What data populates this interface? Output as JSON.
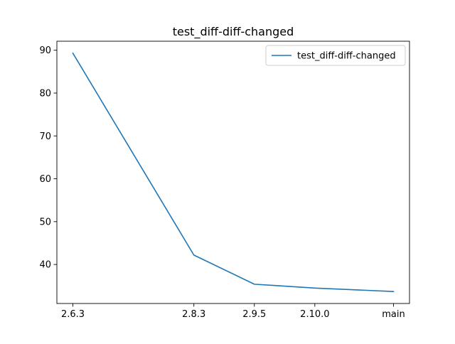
{
  "chart_data": {
    "type": "line",
    "title": "test_diff-diff-changed",
    "xlabel": "",
    "ylabel": "",
    "categories": [
      "2.6.3",
      "2.8.3",
      "2.9.5",
      "2.10.0",
      "main"
    ],
    "x": [
      2.6,
      2.8,
      2.9,
      3.0,
      3.13
    ],
    "series": [
      {
        "name": "test_diff-diff-changed",
        "color": "#1f77b4",
        "values": [
          89.3,
          42.2,
          35.4,
          34.5,
          33.7
        ]
      }
    ],
    "ylim": [
      30.9,
      92.1
    ],
    "yticks": [
      40,
      50,
      60,
      70,
      80,
      90
    ],
    "grid": false,
    "legend_position": "upper right"
  }
}
